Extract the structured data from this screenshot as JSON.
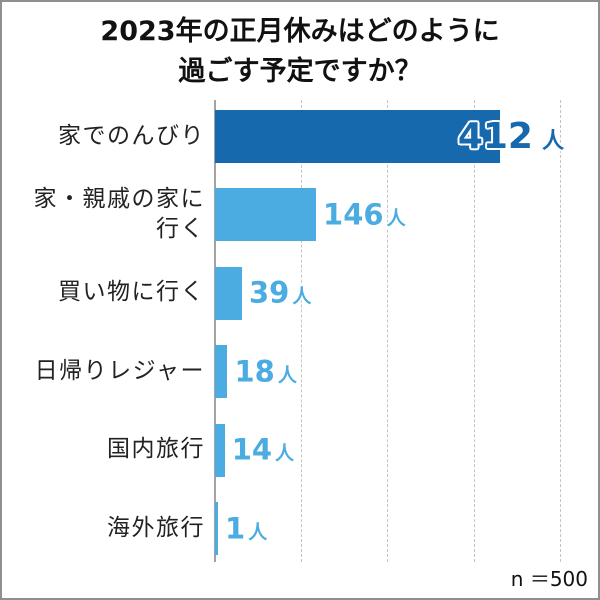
{
  "colors": {
    "highlight_bar": "#1769ae",
    "bar": "#4aace0",
    "axis": "#a3a3a3",
    "grid": "#c4c4c4"
  },
  "sample_size_label": "n ＝500",
  "chart_data": {
    "type": "bar",
    "orientation": "horizontal",
    "title": [
      "2023年の正月休みはどのように",
      "過ごす予定ですか？"
    ],
    "categories": [
      "家でのんびり",
      "家・親戚の家に行く",
      "買い物に行く",
      "日帰りレジャー",
      "国内旅行",
      "海外旅行"
    ],
    "values": [
      412,
      146,
      39,
      18,
      14,
      1
    ],
    "unit": "人",
    "xlim": [
      0,
      500
    ],
    "grid": true,
    "gridlines": [
      125,
      250,
      375,
      500
    ],
    "highlight_index": 0
  }
}
